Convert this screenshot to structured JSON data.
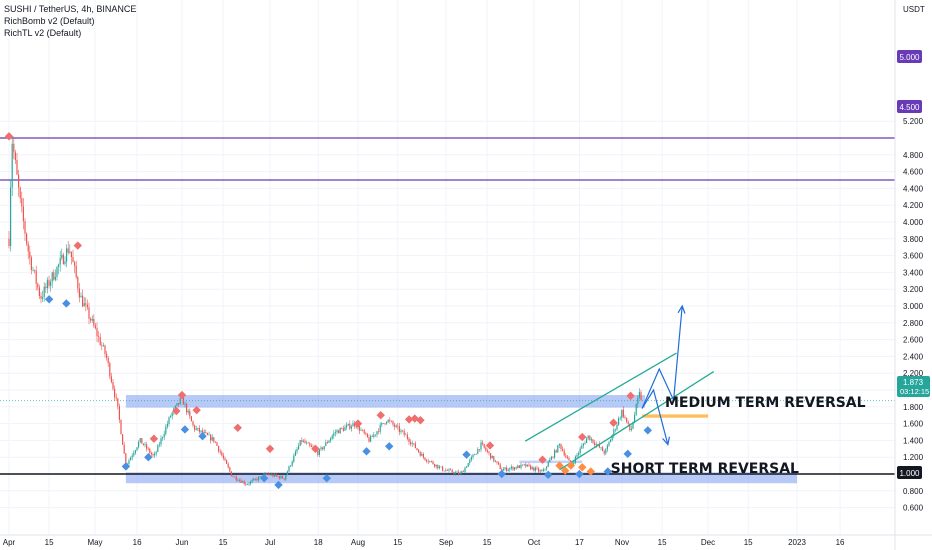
{
  "header": {
    "title": "SUSHI / TetherUS, 4h, BINANCE",
    "indicator_1": "RichBomb v2 (Default)",
    "indicator_2": "RichTL v2 (Default)"
  },
  "price_axis": {
    "unit": "USDT",
    "current_price": "1.873",
    "countdown": "03:12:15",
    "line_labels": [
      "5.000",
      "4.500",
      "1.000"
    ]
  },
  "colors": {
    "up": "#26a69a",
    "down": "#ef5350",
    "zone": "#7b9cf0",
    "channel": "#22ab94",
    "arrow": "#1e6ed8",
    "hline": "#673ab7",
    "support": "#131722",
    "target": "#ffb74d",
    "marker_top": "#ef6f6f",
    "marker_bottom": "#4a90e2",
    "marker_orange": "#ff8c40"
  },
  "chart_data": {
    "type": "candlestick",
    "symbol": "SUSHI / TetherUS",
    "timeframe": "4h",
    "exchange": "BINANCE",
    "y_ticks": [
      "5.200",
      "4.800",
      "4.600",
      "4.400",
      "4.200",
      "4.000",
      "3.800",
      "3.600",
      "3.400",
      "3.200",
      "3.000",
      "2.800",
      "2.600",
      "2.400",
      "2.200",
      "2.000",
      "1.800",
      "1.600",
      "1.400",
      "1.200",
      "0.800",
      "0.600"
    ],
    "x_ticks": [
      "Apr",
      "15",
      "May",
      "16",
      "Jun",
      "15",
      "Jul",
      "18",
      "Aug",
      "15",
      "Sep",
      "15",
      "Oct",
      "17",
      "Nov",
      "15",
      "Dec",
      "15",
      "2023",
      "16"
    ],
    "horizontal_lines": [
      5.0,
      4.5,
      1.0
    ],
    "price_path": [
      [
        "2022-04-01",
        3.8
      ],
      [
        "2022-04-02",
        5.0
      ],
      [
        "2022-04-05",
        4.2
      ],
      [
        "2022-04-08",
        3.6
      ],
      [
        "2022-04-12",
        3.1
      ],
      [
        "2022-04-17",
        3.4
      ],
      [
        "2022-04-22",
        3.7
      ],
      [
        "2022-04-26",
        3.1
      ],
      [
        "2022-04-30",
        2.8
      ],
      [
        "2022-05-05",
        2.4
      ],
      [
        "2022-05-09",
        1.8
      ],
      [
        "2022-05-12",
        1.1
      ],
      [
        "2022-05-17",
        1.4
      ],
      [
        "2022-05-22",
        1.2
      ],
      [
        "2022-05-28",
        1.7
      ],
      [
        "2022-06-01",
        1.9
      ],
      [
        "2022-06-05",
        1.55
      ],
      [
        "2022-06-12",
        1.4
      ],
      [
        "2022-06-18",
        0.98
      ],
      [
        "2022-06-23",
        0.88
      ],
      [
        "2022-06-30",
        1.0
      ],
      [
        "2022-07-06",
        0.95
      ],
      [
        "2022-07-12",
        1.4
      ],
      [
        "2022-07-18",
        1.25
      ],
      [
        "2022-07-24",
        1.5
      ],
      [
        "2022-07-31",
        1.6
      ],
      [
        "2022-08-05",
        1.4
      ],
      [
        "2022-08-11",
        1.65
      ],
      [
        "2022-08-18",
        1.45
      ],
      [
        "2022-08-24",
        1.2
      ],
      [
        "2022-08-31",
        1.05
      ],
      [
        "2022-09-06",
        1.0
      ],
      [
        "2022-09-13",
        1.35
      ],
      [
        "2022-09-20",
        1.05
      ],
      [
        "2022-09-28",
        1.1
      ],
      [
        "2022-10-04",
        1.02
      ],
      [
        "2022-10-10",
        1.35
      ],
      [
        "2022-10-14",
        1.1
      ],
      [
        "2022-10-20",
        1.45
      ],
      [
        "2022-10-26",
        1.25
      ],
      [
        "2022-11-01",
        1.75
      ],
      [
        "2022-11-04",
        1.5
      ],
      [
        "2022-11-07",
        1.95
      ],
      [
        "2022-11-08",
        1.873
      ]
    ],
    "zones": [
      {
        "from": "2022-05-12",
        "to": "2022-11-09",
        "low": 1.79,
        "high": 1.94
      },
      {
        "from": "2022-05-12",
        "to": "2023-01-01",
        "low": 0.89,
        "high": 1.02
      },
      {
        "from": "2022-09-26",
        "to": "2022-10-18",
        "low": 1.13,
        "high": 1.16
      }
    ],
    "target_band": {
      "from": "2022-11-08",
      "to": "2022-12-01",
      "low": 1.67,
      "high": 1.71
    },
    "channel_lines": [
      [
        [
          "2022-09-28",
          1.39
        ],
        [
          "2022-11-20",
          2.44
        ]
      ],
      [
        [
          "2022-10-10",
          1.05
        ],
        [
          "2022-12-03",
          2.22
        ]
      ]
    ],
    "projection_path": [
      [
        "2022-11-08",
        1.78
      ],
      [
        "2022-11-14",
        2.25
      ],
      [
        "2022-11-19",
        1.88
      ],
      [
        "2022-11-22",
        3.0
      ]
    ],
    "alt_projection_path": [
      [
        "2022-11-08",
        1.78
      ],
      [
        "2022-11-12",
        2.0
      ],
      [
        "2022-11-17",
        1.35
      ]
    ],
    "markers_top": [
      [
        "2022-04-01",
        5.02
      ],
      [
        "2022-04-25",
        3.72
      ],
      [
        "2022-05-22",
        1.42
      ],
      [
        "2022-05-30",
        1.75
      ],
      [
        "2022-06-01",
        1.94
      ],
      [
        "2022-06-06",
        1.76
      ],
      [
        "2022-06-20",
        1.55
      ],
      [
        "2022-07-01",
        1.3
      ],
      [
        "2022-07-17",
        1.3
      ],
      [
        "2022-08-01",
        1.6
      ],
      [
        "2022-08-09",
        1.7
      ],
      [
        "2022-08-19",
        1.65
      ],
      [
        "2022-08-21",
        1.66
      ],
      [
        "2022-08-23",
        1.64
      ],
      [
        "2022-09-16",
        1.34
      ],
      [
        "2022-10-04",
        1.17
      ],
      [
        "2022-10-18",
        1.44
      ],
      [
        "2022-10-29",
        1.61
      ],
      [
        "2022-11-04",
        1.93
      ]
    ],
    "markers_bottom": [
      [
        "2022-04-15",
        3.08
      ],
      [
        "2022-04-21",
        3.03
      ],
      [
        "2022-05-12",
        1.09
      ],
      [
        "2022-05-20",
        1.2
      ],
      [
        "2022-06-02",
        1.53
      ],
      [
        "2022-06-08",
        1.45
      ],
      [
        "2022-06-29",
        0.95
      ],
      [
        "2022-07-04",
        0.87
      ],
      [
        "2022-07-21",
        0.95
      ],
      [
        "2022-08-04",
        1.27
      ],
      [
        "2022-08-12",
        1.33
      ],
      [
        "2022-09-08",
        1.23
      ],
      [
        "2022-09-20",
        1.0
      ],
      [
        "2022-10-06",
        0.99
      ],
      [
        "2022-10-17",
        1.0
      ],
      [
        "2022-10-27",
        1.03
      ],
      [
        "2022-11-03",
        1.24
      ],
      [
        "2022-11-10",
        1.52
      ]
    ],
    "markers_orange": [
      [
        "2022-10-10",
        1.1
      ],
      [
        "2022-10-12",
        1.04
      ],
      [
        "2022-10-14",
        1.1
      ],
      [
        "2022-10-18",
        1.08
      ],
      [
        "2022-10-21",
        1.03
      ]
    ],
    "annotations": [
      {
        "text": "MEDIUM TERM REVERSAL",
        "date": "2022-11-16",
        "price": 1.86
      },
      {
        "text": "SHORT TERM REVERSAL",
        "date": "2022-10-28",
        "price": 1.07
      }
    ]
  }
}
